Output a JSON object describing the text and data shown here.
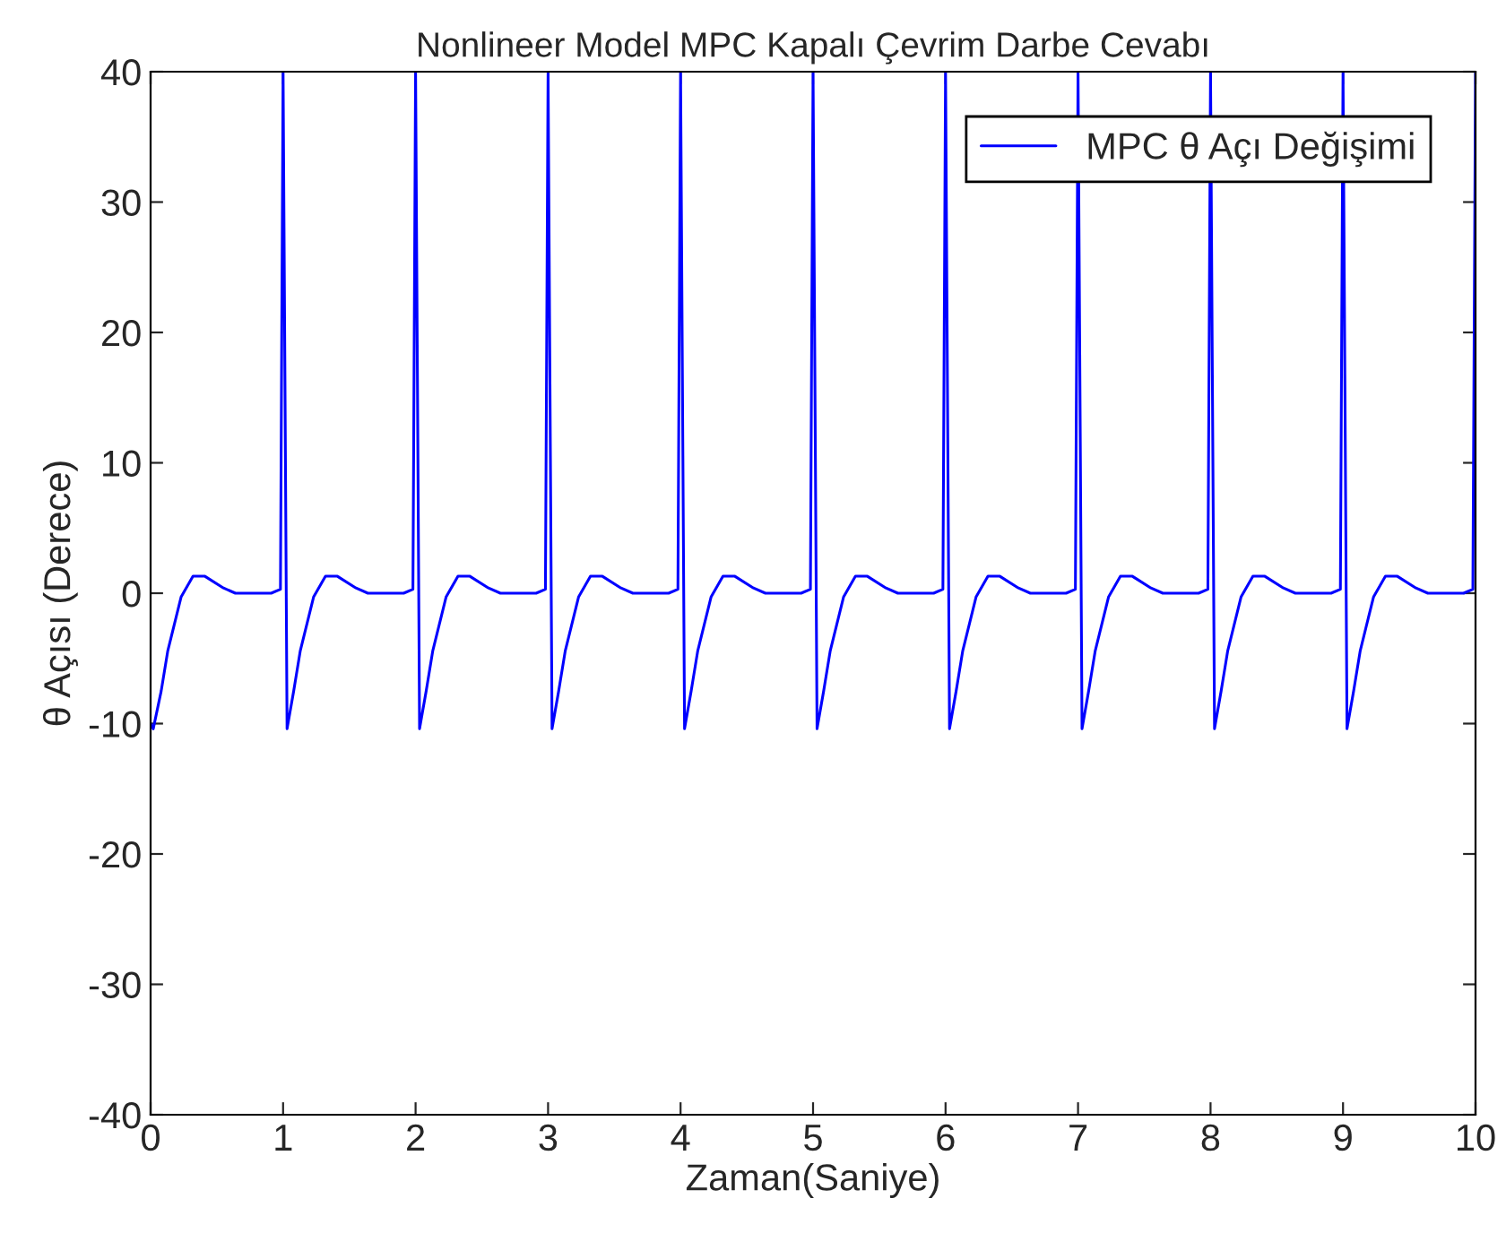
{
  "chart_data": {
    "type": "line",
    "title": "Nonlineer Model MPC Kapalı Çevrim Darbe Cevabı",
    "xlabel": "Zaman(Saniye)",
    "ylabel": "θ Açısı (Derece)",
    "series": [
      {
        "name": "MPC θ Açı Değişimi",
        "color": "#0000ff",
        "x": [
          0,
          0.02,
          0.08,
          0.13,
          0.23,
          0.32,
          0.41,
          0.55,
          0.64,
          0.91,
          0.98,
          1.0,
          1.03,
          1.08,
          1.13,
          1.23,
          1.32,
          1.41,
          1.55,
          1.64,
          1.91,
          1.98,
          2.0,
          2.03,
          2.08,
          2.13,
          2.23,
          2.32,
          2.41,
          2.55,
          2.64,
          2.91,
          2.98,
          3.0,
          3.03,
          3.08,
          3.13,
          3.23,
          3.32,
          3.41,
          3.55,
          3.64,
          3.91,
          3.98,
          4.0,
          4.03,
          4.08,
          4.13,
          4.23,
          4.32,
          4.41,
          4.55,
          4.64,
          4.91,
          4.98,
          5.0,
          5.03,
          5.08,
          5.13,
          5.23,
          5.32,
          5.41,
          5.55,
          5.64,
          5.91,
          5.98,
          6.0,
          6.03,
          6.08,
          6.13,
          6.23,
          6.32,
          6.41,
          6.55,
          6.64,
          6.91,
          6.98,
          7.0,
          7.03,
          7.08,
          7.13,
          7.23,
          7.32,
          7.41,
          7.55,
          7.64,
          7.91,
          7.98,
          8.0,
          8.03,
          8.08,
          8.13,
          8.23,
          8.32,
          8.41,
          8.55,
          8.64,
          8.91,
          8.98,
          9.0,
          9.03,
          9.08,
          9.13,
          9.23,
          9.32,
          9.41,
          9.55,
          9.64,
          9.91,
          9.98,
          10.0
        ],
        "values": [
          -10.0,
          -10.4,
          -7.5,
          -4.4,
          -0.3,
          1.3,
          1.3,
          0.4,
          0,
          0,
          0.3,
          40,
          -10.4,
          -7.5,
          -4.4,
          -0.3,
          1.3,
          1.3,
          0.4,
          0,
          0,
          0.3,
          40,
          -10.4,
          -7.5,
          -4.4,
          -0.3,
          1.3,
          1.3,
          0.4,
          0,
          0,
          0.3,
          40,
          -10.4,
          -7.5,
          -4.4,
          -0.3,
          1.3,
          1.3,
          0.4,
          0,
          0,
          0.3,
          40,
          -10.4,
          -7.5,
          -4.4,
          -0.3,
          1.3,
          1.3,
          0.4,
          0,
          0,
          0.3,
          40,
          -10.4,
          -7.5,
          -4.4,
          -0.3,
          1.3,
          1.3,
          0.4,
          0,
          0,
          0.3,
          40,
          -10.4,
          -7.5,
          -4.4,
          -0.3,
          1.3,
          1.3,
          0.4,
          0,
          0,
          0.3,
          40,
          -10.4,
          -7.5,
          -4.4,
          -0.3,
          1.3,
          1.3,
          0.4,
          0,
          0,
          0.3,
          40,
          -10.4,
          -7.5,
          -4.4,
          -0.3,
          1.3,
          1.3,
          0.4,
          0,
          0,
          0.3,
          40,
          -10.4,
          -7.5,
          -4.4,
          -0.3,
          1.3,
          1.3,
          0.4,
          0,
          0,
          0.3,
          40
        ]
      }
    ],
    "xlim": [
      0,
      10
    ],
    "ylim": [
      -40,
      40
    ],
    "xticks": [
      0,
      1,
      2,
      3,
      4,
      5,
      6,
      7,
      8,
      9,
      10
    ],
    "yticks": [
      -40,
      -30,
      -20,
      -10,
      0,
      10,
      20,
      30,
      40
    ],
    "grid": false,
    "legend": "top right",
    "marker": "none",
    "line_style": "solid"
  }
}
